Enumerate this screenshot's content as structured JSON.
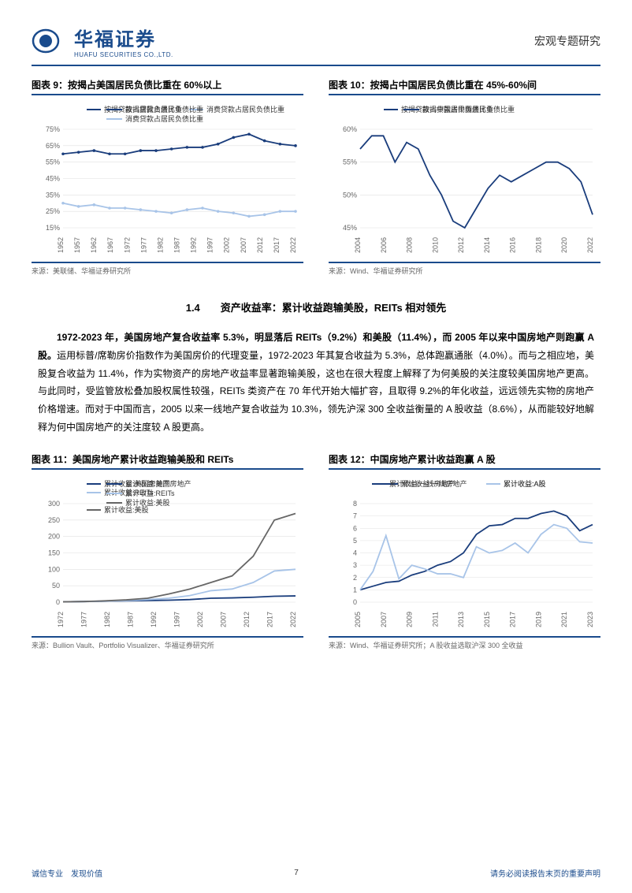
{
  "header": {
    "logo_cn": "华福证券",
    "logo_en": "HUAFU SECURITIES CO.,LTD.",
    "doc_type": "宏观专题研究"
  },
  "chart9": {
    "title": "图表 9：按揭占美国居民负债比重在 60%以上",
    "type": "line",
    "legend": [
      "按揭贷款占居民负债比重",
      "消费贷款占居民负债比重"
    ],
    "colors": [
      "#1a3d7c",
      "#a8c4e8"
    ],
    "x_labels": [
      "1952",
      "1957",
      "1962",
      "1967",
      "1972",
      "1977",
      "1982",
      "1987",
      "1992",
      "1997",
      "2002",
      "2007",
      "2012",
      "2017",
      "2022"
    ],
    "y_labels": [
      "15%",
      "25%",
      "35%",
      "45%",
      "55%",
      "65%",
      "75%"
    ],
    "ylim": [
      15,
      75
    ],
    "grid_color": "#e0e0e0",
    "background": "#ffffff",
    "series1": [
      60,
      61,
      62,
      60,
      60,
      62,
      62,
      63,
      64,
      64,
      66,
      70,
      72,
      68,
      66,
      65
    ],
    "series2": [
      30,
      28,
      29,
      27,
      27,
      26,
      25,
      24,
      26,
      27,
      25,
      24,
      22,
      23,
      25,
      25
    ],
    "source": "来源：美联储、华福证券研究所"
  },
  "chart10": {
    "title": "图表 10：按揭占中国居民负债比重在 45%-60%间",
    "type": "line",
    "legend": [
      "按揭贷款占中国居民负债比重"
    ],
    "colors": [
      "#1a3d7c"
    ],
    "x_labels": [
      "2004",
      "2006",
      "2008",
      "2010",
      "2012",
      "2014",
      "2016",
      "2018",
      "2020",
      "2022"
    ],
    "y_labels": [
      "45%",
      "50%",
      "55%",
      "60%"
    ],
    "ylim": [
      45,
      60
    ],
    "grid_color": "#e0e0e0",
    "background": "#ffffff",
    "series1": [
      57,
      59,
      59,
      55,
      58,
      57,
      53,
      50,
      46,
      45,
      48,
      51,
      53,
      52,
      53,
      54,
      55,
      55,
      54,
      52,
      47
    ],
    "source": "来源：Wind、华福证券研究所"
  },
  "section": {
    "num_title": "1.4　　资产收益率：累计收益跑输美股，REITs 相对领先",
    "para_bold": "1972-2023 年，美国房地产复合收益率 5.3%，明显落后 REITs（9.2%）和美股（11.4%），而 2005 年以来中国房地产则跑赢 A 股。",
    "para_rest": "运用标普/席勒房价指数作为美国房价的代理变量，1972-2023 年其复合收益为 5.3%，总体跑赢通胀（4.0%）。而与之相应地，美股复合收益为 11.4%，作为实物资产的房地产收益率显著跑输美股，这也在很大程度上解释了为何美股的关注度较美国房地产更高。与此同时，受监管放松叠加股权属性较强，REITs 类资产在 70 年代开始大幅扩容，且取得 9.2%的年化收益，远远领先实物的房地产价格增速。而对于中国而言，2005 以来一线地产复合收益为 10.3%，领先沪深 300 全收益衡量的 A 股收益（8.6%），从而能较好地解释为何中国房地产的关注度较 A 股更高。"
  },
  "chart11": {
    "title": "图表 11：美国房地产累计收益跑输美股和 REITs",
    "type": "line",
    "legend": [
      "累计收益:美国房地产",
      "累计收益:REITs",
      "累计收益:美股"
    ],
    "colors": [
      "#1a3d7c",
      "#a8c4e8",
      "#666666"
    ],
    "x_labels": [
      "1972",
      "1977",
      "1982",
      "1987",
      "1992",
      "1997",
      "2002",
      "2007",
      "2012",
      "2017",
      "2022"
    ],
    "y_labels": [
      "0",
      "50",
      "100",
      "150",
      "200",
      "250",
      "300"
    ],
    "ylim": [
      0,
      300
    ],
    "grid_color": "#e0e0e0",
    "background": "#ffffff",
    "series1": [
      1,
      2,
      3,
      4,
      5,
      6,
      8,
      12,
      13,
      15,
      18,
      19
    ],
    "series2": [
      1,
      2,
      3,
      5,
      8,
      12,
      20,
      35,
      40,
      60,
      95,
      100
    ],
    "series3": [
      1,
      2,
      4,
      7,
      12,
      25,
      40,
      60,
      80,
      140,
      250,
      270
    ],
    "source": "来源：Bullion Vault、Portfolio Visualizer、华福证券研究所"
  },
  "chart12": {
    "title": "图表 12：中国房地产累计收益跑赢 A 股",
    "type": "line",
    "legend": [
      "累计收益:一线房地产",
      "累计收益:A股"
    ],
    "colors": [
      "#1a3d7c",
      "#a8c4e8"
    ],
    "x_labels": [
      "2005",
      "2007",
      "2009",
      "2011",
      "2013",
      "2015",
      "2017",
      "2019",
      "2021",
      "2023"
    ],
    "y_labels": [
      "0",
      "1",
      "2",
      "3",
      "4",
      "5",
      "6",
      "7",
      "8"
    ],
    "ylim": [
      0,
      8
    ],
    "grid_color": "#e0e0e0",
    "background": "#ffffff",
    "series1": [
      1,
      1.3,
      1.6,
      1.7,
      2.2,
      2.5,
      3.0,
      3.3,
      4.0,
      5.5,
      6.2,
      6.3,
      6.8,
      6.8,
      7.2,
      7.4,
      7.0,
      5.8,
      6.3
    ],
    "series2": [
      1,
      2.5,
      5.4,
      1.9,
      3.0,
      2.7,
      2.3,
      2.3,
      2.0,
      4.5,
      4.0,
      4.2,
      4.8,
      4.0,
      5.5,
      6.3,
      6.0,
      4.9,
      4.8
    ],
    "source": "来源：Wind、华福证券研究所；A 股收益选取沪深 300 全收益"
  },
  "footer": {
    "left": "诚信专业　发现价值",
    "page": "7",
    "right": "请务必阅读报告末页的重要声明"
  }
}
